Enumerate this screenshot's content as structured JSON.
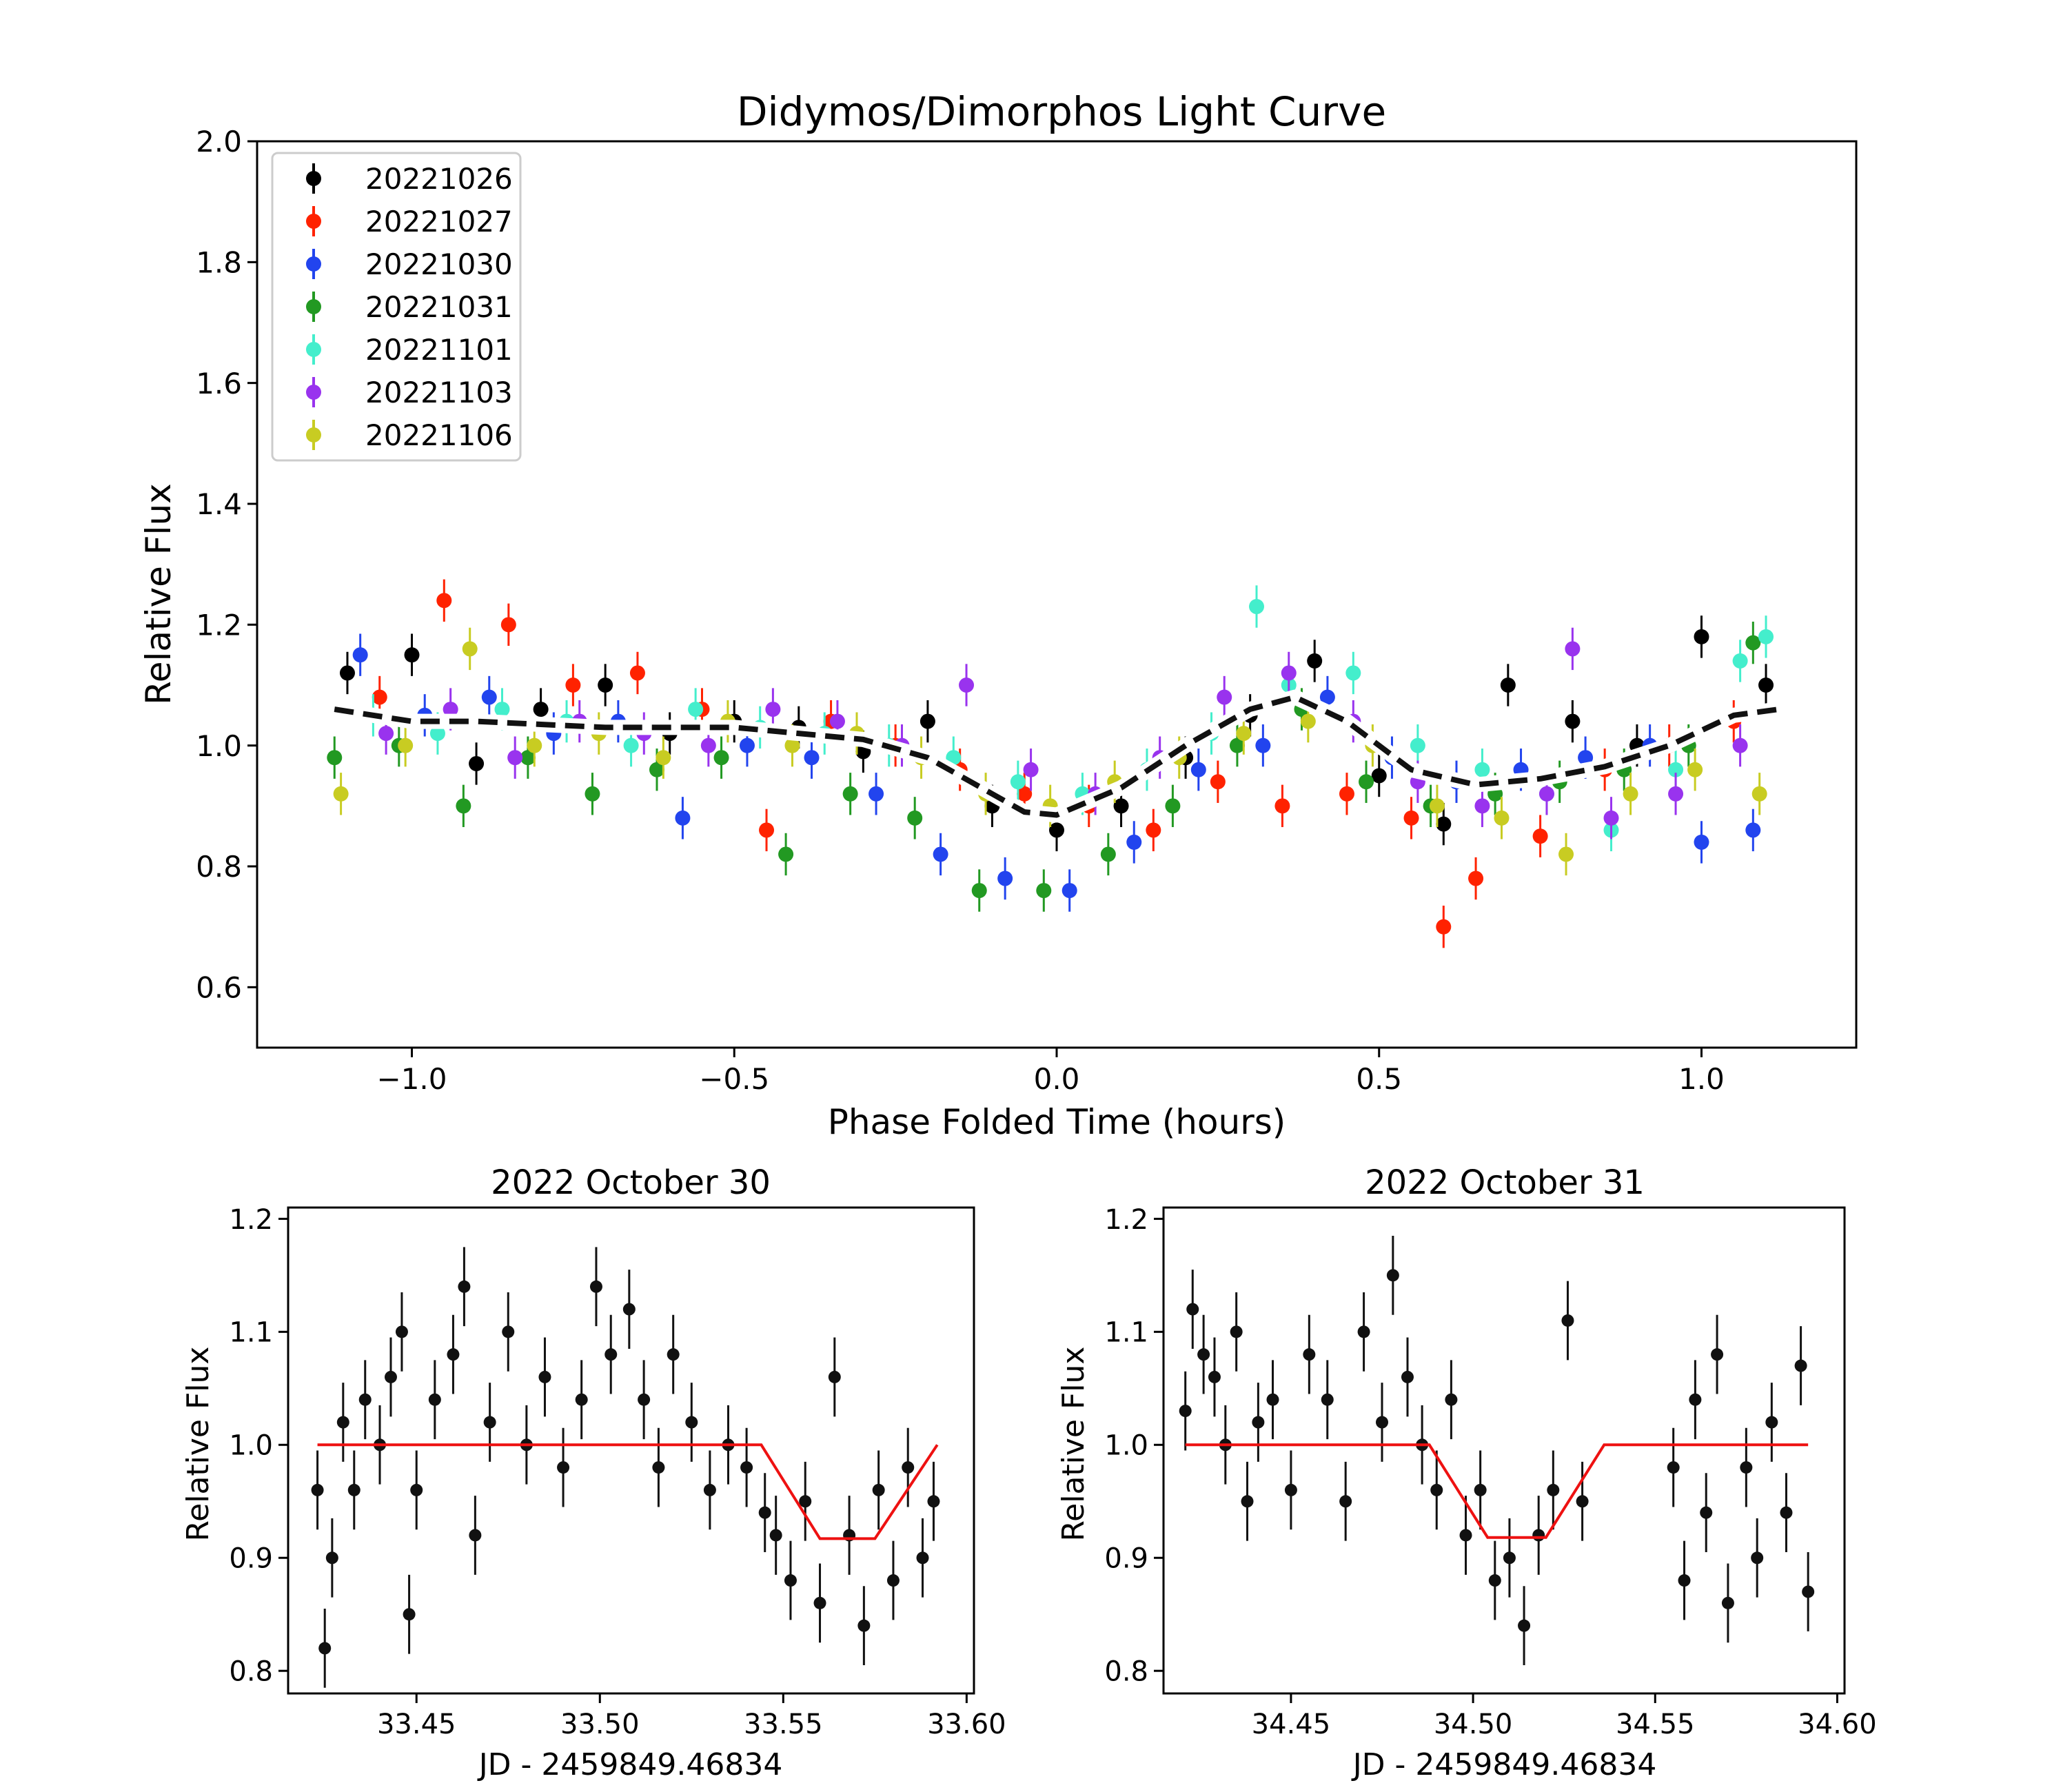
{
  "chart_data": [
    {
      "type": "scatter",
      "title": "Didymos/Dimorphos Light Curve",
      "xlabel": "Phase Folded Time (hours)",
      "ylabel": "Relative Flux",
      "xlim": [
        -1.24,
        1.24
      ],
      "ylim": [
        0.5,
        2.0
      ],
      "xticks": [
        -1.0,
        -0.5,
        0.0,
        0.5,
        1.0
      ],
      "xtick_labels": [
        "−1.0",
        "−0.5",
        "0.0",
        "0.5",
        "1.0"
      ],
      "yticks": [
        0.6,
        0.8,
        1.0,
        1.2,
        1.4,
        1.6,
        1.8,
        2.0
      ],
      "ytick_labels": [
        "0.6",
        "0.8",
        "1.0",
        "1.2",
        "1.4",
        "1.6",
        "1.8",
        "2.0"
      ],
      "legend_position": "top-left",
      "series": [
        {
          "name": "20221026",
          "color": "#000000",
          "x": [
            -1.1,
            -1.0,
            -0.9,
            -0.8,
            -0.7,
            -0.6,
            -0.5,
            -0.4,
            -0.3,
            -0.2,
            -0.1,
            0.0,
            0.1,
            0.2,
            0.3,
            0.4,
            0.5,
            0.6,
            0.7,
            0.8,
            0.9,
            1.0,
            1.1
          ],
          "y": [
            1.12,
            1.15,
            0.97,
            1.06,
            1.1,
            1.02,
            1.04,
            1.03,
            0.99,
            1.04,
            0.9,
            0.86,
            0.9,
            0.98,
            1.05,
            1.14,
            0.95,
            0.87,
            1.1,
            1.04,
            1.0,
            1.18,
            1.1
          ]
        },
        {
          "name": "20221027",
          "color": "#ff2200",
          "x": [
            -1.05,
            -0.95,
            -0.85,
            -0.75,
            -0.65,
            -0.55,
            -0.45,
            -0.35,
            -0.25,
            -0.15,
            -0.05,
            0.05,
            0.15,
            0.25,
            0.35,
            0.45,
            0.55,
            0.6,
            0.65,
            0.75,
            0.85,
            0.95,
            1.05
          ],
          "y": [
            1.08,
            1.24,
            1.2,
            1.1,
            1.12,
            1.06,
            0.86,
            1.04,
            1.0,
            0.96,
            0.92,
            0.9,
            0.86,
            0.94,
            0.9,
            0.92,
            0.88,
            0.7,
            0.78,
            0.85,
            0.96,
            1.0,
            1.04
          ]
        },
        {
          "name": "20221030",
          "color": "#2244ee",
          "x": [
            -1.08,
            -0.98,
            -0.88,
            -0.78,
            -0.68,
            -0.58,
            -0.48,
            -0.38,
            -0.28,
            -0.18,
            -0.08,
            0.02,
            0.12,
            0.22,
            0.32,
            0.42,
            0.52,
            0.62,
            0.72,
            0.82,
            0.92,
            1.0,
            1.08
          ],
          "y": [
            1.15,
            1.05,
            1.08,
            1.02,
            1.04,
            0.88,
            1.0,
            0.98,
            0.92,
            0.82,
            0.78,
            0.76,
            0.84,
            0.96,
            1.0,
            1.08,
            0.98,
            0.94,
            0.96,
            0.98,
            1.0,
            0.84,
            0.86
          ]
        },
        {
          "name": "20221031",
          "color": "#229922",
          "x": [
            -1.12,
            -1.02,
            -0.92,
            -0.82,
            -0.72,
            -0.62,
            -0.52,
            -0.42,
            -0.32,
            -0.22,
            -0.12,
            -0.02,
            0.08,
            0.18,
            0.28,
            0.38,
            0.48,
            0.58,
            0.68,
            0.78,
            0.88,
            0.98,
            1.08
          ],
          "y": [
            0.98,
            1.0,
            0.9,
            0.98,
            0.92,
            0.96,
            0.98,
            0.82,
            0.92,
            0.88,
            0.76,
            0.76,
            0.82,
            0.9,
            1.0,
            1.06,
            0.94,
            0.9,
            0.92,
            0.94,
            0.96,
            1.0,
            1.17
          ]
        },
        {
          "name": "20221101",
          "color": "#44eecc",
          "x": [
            -1.06,
            -0.96,
            -0.86,
            -0.76,
            -0.66,
            -0.56,
            -0.46,
            -0.36,
            -0.26,
            -0.16,
            -0.06,
            0.04,
            0.14,
            0.24,
            0.31,
            0.36,
            0.46,
            0.56,
            0.66,
            0.76,
            0.86,
            0.96,
            1.06,
            1.1
          ],
          "y": [
            1.05,
            1.02,
            1.06,
            1.04,
            1.0,
            1.06,
            1.03,
            1.02,
            1.0,
            0.98,
            0.94,
            0.92,
            0.96,
            1.02,
            1.23,
            1.1,
            1.12,
            1.0,
            0.96,
            0.92,
            0.86,
            0.96,
            1.14,
            1.18
          ]
        },
        {
          "name": "20221103",
          "color": "#9933ee",
          "x": [
            -1.04,
            -0.94,
            -0.84,
            -0.74,
            -0.64,
            -0.54,
            -0.44,
            -0.34,
            -0.24,
            -0.14,
            -0.04,
            0.06,
            0.16,
            0.26,
            0.36,
            0.46,
            0.56,
            0.66,
            0.76,
            0.8,
            0.86,
            0.96,
            1.06
          ],
          "y": [
            1.02,
            1.06,
            0.98,
            1.04,
            1.02,
            1.0,
            1.06,
            1.04,
            1.0,
            1.1,
            0.96,
            0.92,
            0.98,
            1.08,
            1.12,
            1.04,
            0.94,
            0.9,
            0.92,
            1.16,
            0.88,
            0.92,
            1.0
          ]
        },
        {
          "name": "20221106",
          "color": "#c8cc22",
          "x": [
            -1.11,
            -1.01,
            -0.91,
            -0.81,
            -0.71,
            -0.61,
            -0.51,
            -0.41,
            -0.31,
            -0.21,
            -0.11,
            -0.01,
            0.09,
            0.19,
            0.29,
            0.39,
            0.49,
            0.59,
            0.69,
            0.79,
            0.89,
            0.99,
            1.09
          ],
          "y": [
            0.92,
            1.0,
            1.16,
            1.0,
            1.02,
            0.98,
            1.04,
            1.0,
            1.02,
            0.98,
            0.92,
            0.9,
            0.94,
            0.98,
            1.02,
            1.04,
            1.0,
            0.9,
            0.88,
            0.82,
            0.92,
            0.96,
            0.92
          ]
        }
      ],
      "model_curve": {
        "name": "model",
        "x": [
          -1.12,
          -1.0,
          -0.9,
          -0.8,
          -0.7,
          -0.6,
          -0.5,
          -0.4,
          -0.3,
          -0.2,
          -0.1,
          -0.05,
          0.0,
          0.1,
          0.2,
          0.3,
          0.37,
          0.45,
          0.55,
          0.65,
          0.75,
          0.85,
          0.95,
          1.05,
          1.12
        ],
        "y": [
          1.06,
          1.04,
          1.04,
          1.035,
          1.03,
          1.03,
          1.03,
          1.02,
          1.01,
          0.98,
          0.92,
          0.89,
          0.885,
          0.93,
          1.0,
          1.06,
          1.08,
          1.04,
          0.96,
          0.935,
          0.945,
          0.965,
          1.0,
          1.05,
          1.06
        ]
      }
    },
    {
      "type": "scatter",
      "title": "2022 October 30",
      "xlabel": "JD - 2459849.46834",
      "ylabel": "Relative Flux",
      "xlim": [
        33.415,
        33.602
      ],
      "ylim": [
        0.78,
        1.21
      ],
      "xticks": [
        33.45,
        33.5,
        33.55,
        33.6
      ],
      "xtick_labels": [
        "33.45",
        "33.50",
        "33.55",
        "33.60"
      ],
      "yticks": [
        0.8,
        0.9,
        1.0,
        1.1,
        1.2
      ],
      "ytick_labels": [
        "0.8",
        "0.9",
        "1.0",
        "1.1",
        "1.2"
      ],
      "points": {
        "x": [
          33.423,
          33.425,
          33.427,
          33.43,
          33.433,
          33.436,
          33.44,
          33.443,
          33.446,
          33.448,
          33.45,
          33.455,
          33.46,
          33.463,
          33.466,
          33.47,
          33.475,
          33.48,
          33.485,
          33.49,
          33.495,
          33.499,
          33.503,
          33.508,
          33.512,
          33.516,
          33.52,
          33.525,
          33.53,
          33.535,
          33.54,
          33.545,
          33.548,
          33.552,
          33.556,
          33.56,
          33.564,
          33.568,
          33.572,
          33.576,
          33.58,
          33.584,
          33.588,
          33.591
        ],
        "y": [
          0.96,
          0.82,
          0.9,
          1.02,
          0.96,
          1.04,
          1.0,
          1.06,
          1.1,
          0.85,
          0.96,
          1.04,
          1.08,
          1.14,
          0.92,
          1.02,
          1.1,
          1.0,
          1.06,
          0.98,
          1.04,
          1.14,
          1.08,
          1.12,
          1.04,
          0.98,
          1.08,
          1.02,
          0.96,
          1.0,
          0.98,
          0.94,
          0.92,
          0.88,
          0.95,
          0.86,
          1.06,
          0.92,
          0.84,
          0.96,
          0.88,
          0.98,
          0.9,
          0.95
        ]
      },
      "model": {
        "x": [
          33.423,
          33.544,
          33.56,
          33.575,
          33.592
        ],
        "y": [
          1.0,
          1.0,
          0.917,
          0.917,
          1.0
        ]
      }
    },
    {
      "type": "scatter",
      "title": "2022 October 31",
      "xlabel": "JD - 2459849.46834",
      "ylabel": "Relative Flux",
      "xlim": [
        34.415,
        34.602
      ],
      "ylim": [
        0.78,
        1.21
      ],
      "xticks": [
        34.45,
        34.5,
        34.55,
        34.6
      ],
      "xtick_labels": [
        "34.45",
        "34.50",
        "34.55",
        "34.60"
      ],
      "yticks": [
        0.8,
        0.9,
        1.0,
        1.1,
        1.2
      ],
      "ytick_labels": [
        "0.8",
        "0.9",
        "1.0",
        "1.1",
        "1.2"
      ],
      "points": {
        "x": [
          34.421,
          34.423,
          34.426,
          34.429,
          34.432,
          34.435,
          34.438,
          34.441,
          34.445,
          34.45,
          34.455,
          34.46,
          34.465,
          34.47,
          34.475,
          34.478,
          34.482,
          34.486,
          34.49,
          34.494,
          34.498,
          34.502,
          34.506,
          34.51,
          34.514,
          34.518,
          34.522,
          34.526,
          34.53,
          34.555,
          34.558,
          34.561,
          34.564,
          34.567,
          34.57,
          34.575,
          34.578,
          34.582,
          34.586,
          34.59,
          34.592
        ],
        "y": [
          1.03,
          1.12,
          1.08,
          1.06,
          1.0,
          1.1,
          0.95,
          1.02,
          1.04,
          0.96,
          1.08,
          1.04,
          0.95,
          1.1,
          1.02,
          1.15,
          1.06,
          1.0,
          0.96,
          1.04,
          0.92,
          0.96,
          0.88,
          0.9,
          0.84,
          0.92,
          0.96,
          1.11,
          0.95,
          0.98,
          0.88,
          1.04,
          0.94,
          1.08,
          0.86,
          0.98,
          0.9,
          1.02,
          0.94,
          1.07,
          0.87
        ]
      },
      "model": {
        "x": [
          34.421,
          34.488,
          34.504,
          34.52,
          34.536,
          34.592
        ],
        "y": [
          1.0,
          1.0,
          0.918,
          0.918,
          1.0,
          1.0
        ]
      }
    }
  ]
}
